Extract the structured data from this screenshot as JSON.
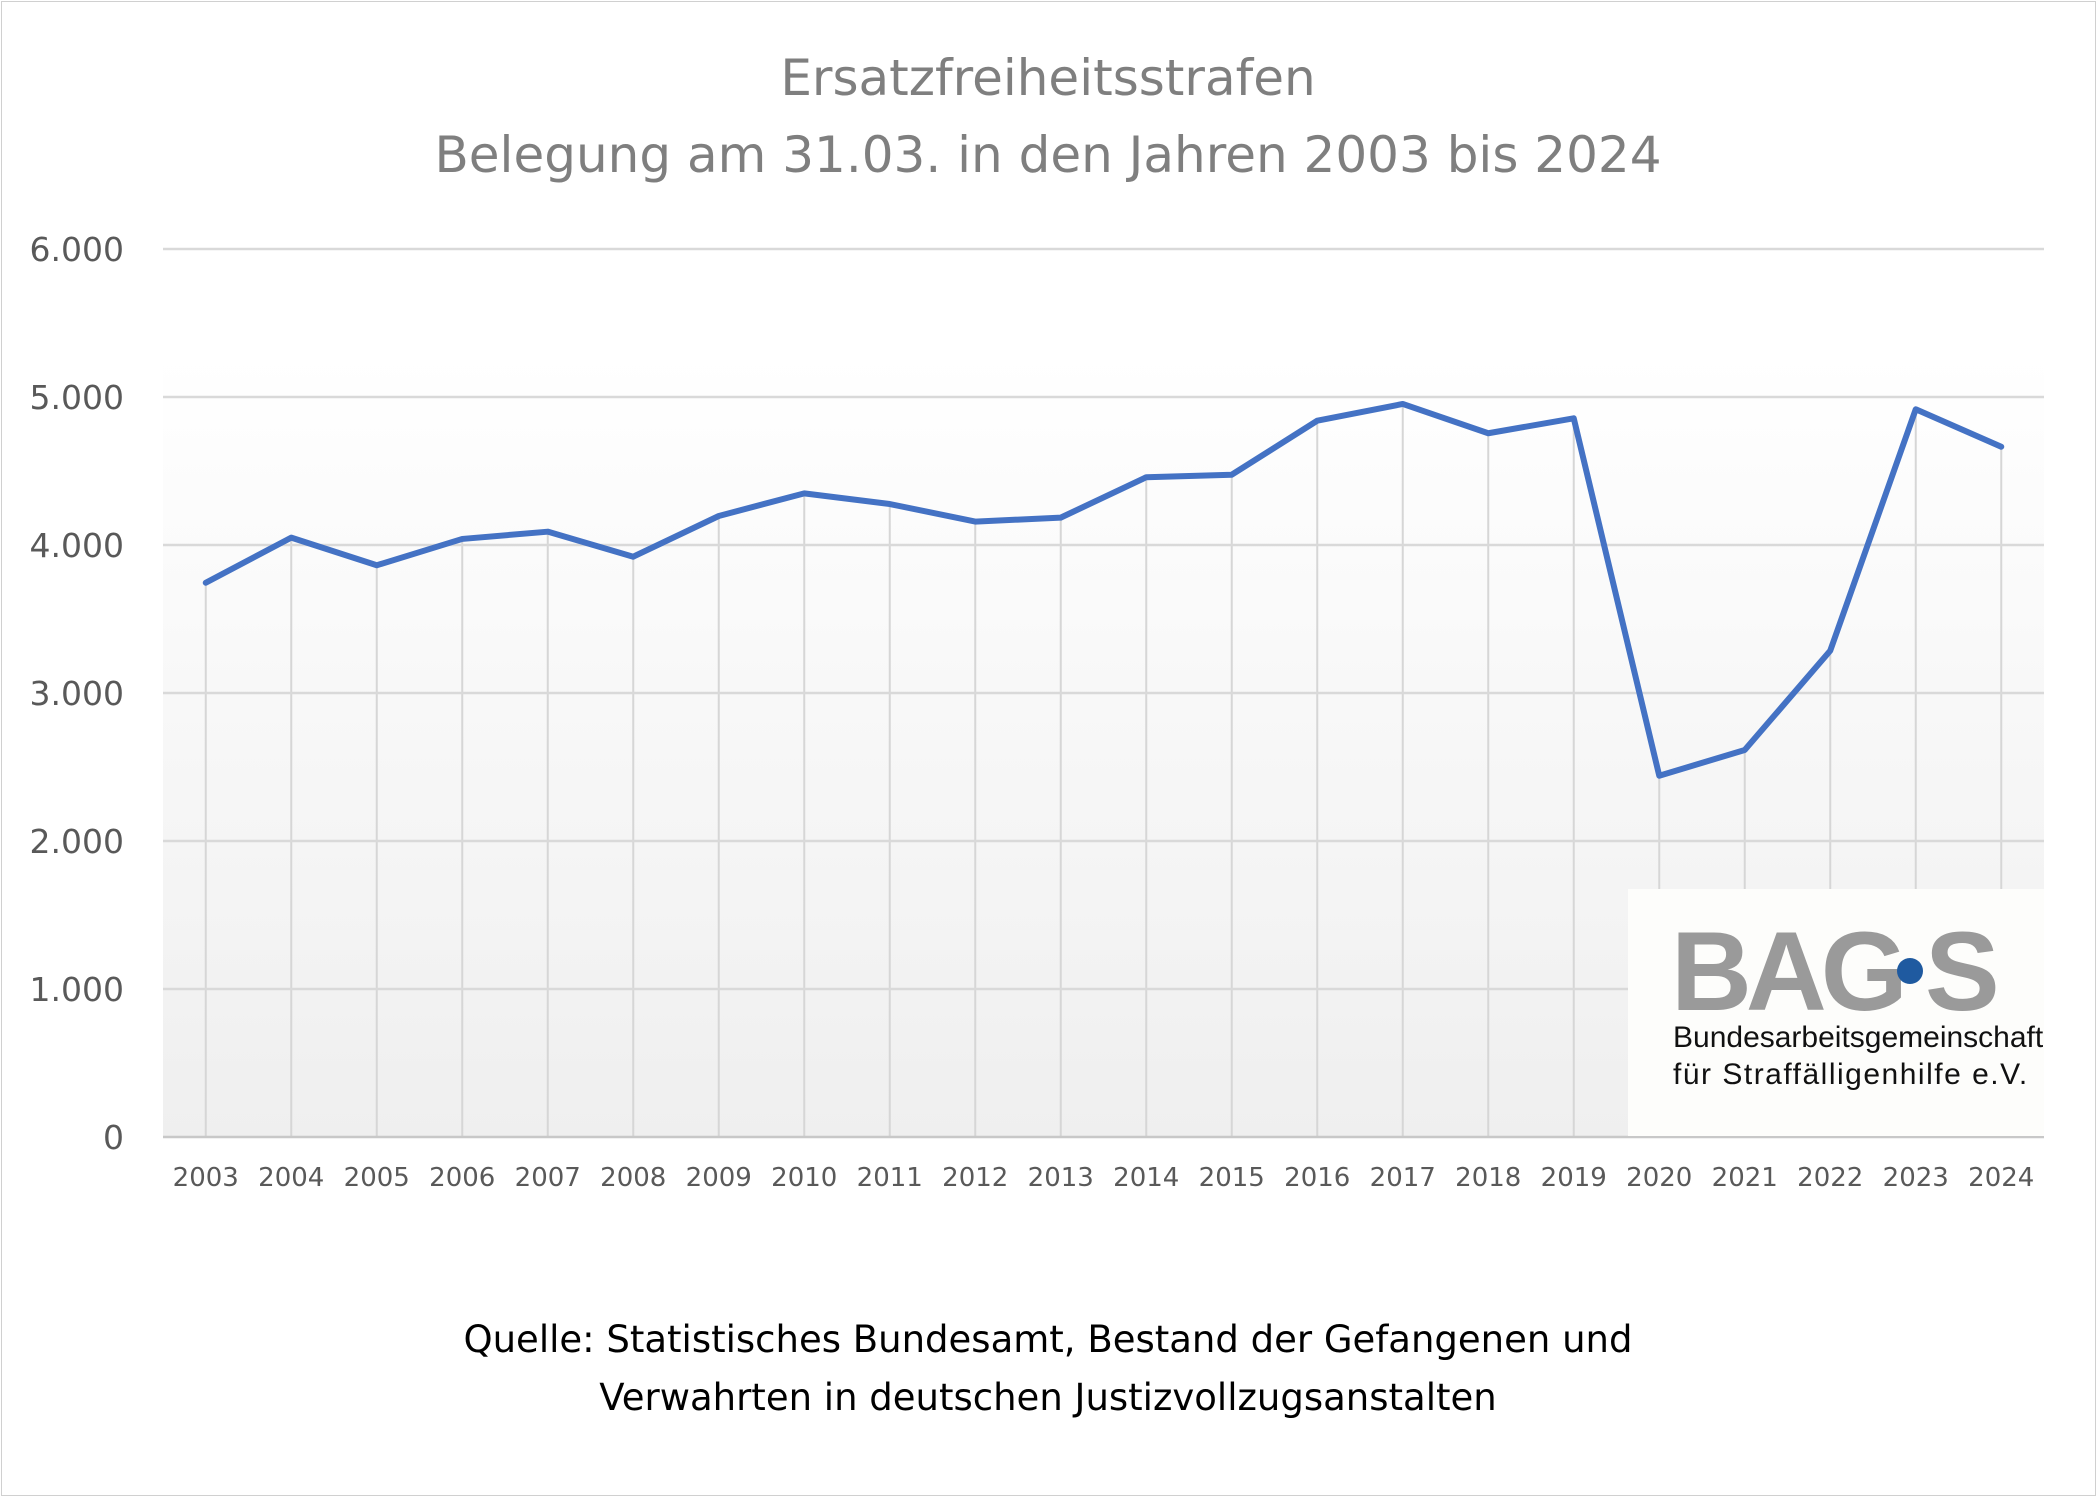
{
  "chart_data": {
    "type": "line",
    "title": "Ersatzfreiheitsstrafen",
    "subtitle": "Belegung am 31.03. in den Jahren 2003 bis 2024",
    "xlabel": "",
    "ylabel": "",
    "categories": [
      "2003",
      "2004",
      "2005",
      "2006",
      "2007",
      "2008",
      "2009",
      "2010",
      "2011",
      "2012",
      "2013",
      "2014",
      "2015",
      "2016",
      "2017",
      "2018",
      "2019",
      "2020",
      "2021",
      "2022",
      "2023",
      "2024"
    ],
    "values": [
      3745,
      4050,
      3863,
      4041,
      4090,
      3921,
      4196,
      4349,
      4277,
      4158,
      4185,
      4458,
      4475,
      4840,
      4953,
      4755,
      4856,
      2441,
      2615,
      3286,
      4917,
      4664
    ],
    "ylim": [
      0,
      6000
    ],
    "yticks": [
      0,
      1000,
      2000,
      3000,
      4000,
      5000,
      6000
    ],
    "ytick_labels": [
      "0",
      "1.000",
      "2.000",
      "3.000",
      "4.000",
      "5.000",
      "6.000"
    ],
    "grid": "horizontal and vertical",
    "legend": "none",
    "line_color": "#4472c4",
    "source_lines": [
      "Quelle: Statistisches Bundesamt, Bestand der Gefangenen und",
      "Verwahrten in deutschen Justizvollzugsanstalten"
    ]
  },
  "logo": {
    "text": "BAG·S",
    "line1": "Bundesarbeitsgemeinschaft",
    "line2": "für Straffälligenhilfe e.V.",
    "gray": "#9a9a9a",
    "dot_color": "#1f5aa0"
  }
}
